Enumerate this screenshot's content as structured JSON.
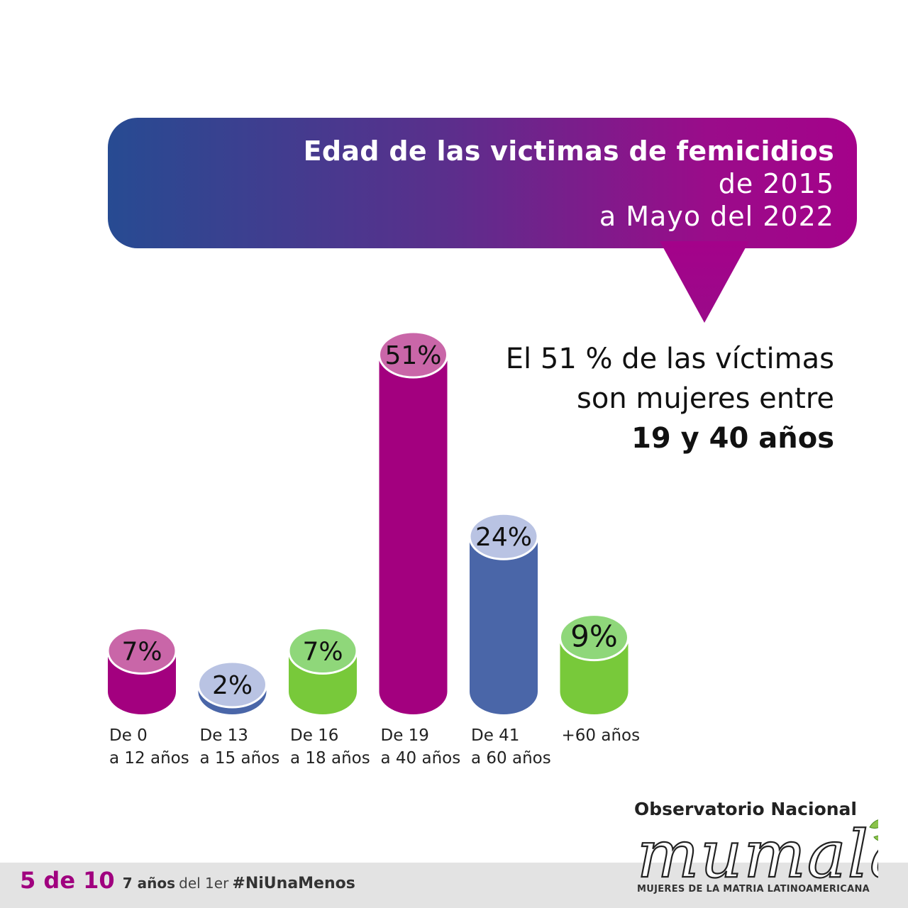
{
  "header": {
    "title": "Edad de las victimas de femicidios",
    "subtitle_line1": "de 2015",
    "subtitle_line2": "a Mayo del 2022"
  },
  "highlight": {
    "line1": "El 51 % de las víctimas",
    "line2": "son mujeres entre",
    "line3": "19 y 40 años"
  },
  "chart_data": {
    "type": "bar",
    "title": "Edad de las victimas de femicidios",
    "categories": [
      {
        "line1": "De 0",
        "line2": "a 12 años"
      },
      {
        "line1": "De 13",
        "line2": "a 15 años"
      },
      {
        "line1": "De 16",
        "line2": "a 18 años"
      },
      {
        "line1": "De 19",
        "line2": "a 40 años"
      },
      {
        "line1": "De 41",
        "line2": "a 60 años"
      },
      {
        "line1": "+60 años",
        "line2": ""
      }
    ],
    "values": [
      7,
      2,
      7,
      51,
      24,
      9
    ],
    "value_labels": [
      "7%",
      "2%",
      "7%",
      "51%",
      "24%",
      "9%"
    ],
    "colors": [
      "#a3007f",
      "#4a66a8",
      "#78c93a",
      "#a3007f",
      "#4a66a8",
      "#78c93a"
    ],
    "top_colors": [
      "#c966a8",
      "#b9c3e3",
      "#8fd77a",
      "#c966a8",
      "#b9c3e3",
      "#8fd77a"
    ],
    "ylim": [
      0,
      51
    ],
    "unit": "%"
  },
  "footer": {
    "count": "5 de 10",
    "years": "7 años",
    "middle": "del 1er",
    "hashtag": "#NiUnaMenos"
  },
  "logo": {
    "top": "Observatorio Nacional",
    "word": "mumala",
    "bottom": "MUJERES DE LA MATRIA LATINOAMERICANA"
  }
}
